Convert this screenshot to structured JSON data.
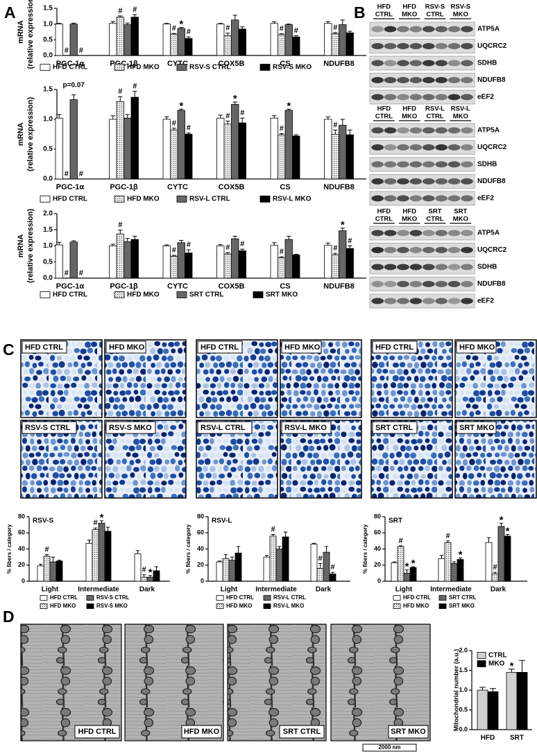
{
  "panel_labels": [
    "A",
    "B",
    "C",
    "D"
  ],
  "chart_data": [
    {
      "type": "bar",
      "y_label": "mRNA",
      "y_label_sub": "(relative expression)",
      "categories": [
        "PGC-1α",
        "PGC-1β",
        "CYTC",
        "COX5B",
        "CS",
        "NDUFB8"
      ],
      "ylim": [
        0,
        1.5
      ],
      "yticks": [
        {
          "value": 0,
          "label": "0.0"
        },
        0.5,
        {
          "value": 1,
          "label": "1.0"
        },
        1.5
      ],
      "legend": "bottom",
      "series": [
        {
          "name": "HFD CTRL",
          "color": "#ffffff",
          "values": [
            1.0,
            1.02,
            1.0,
            1.0,
            1.02,
            1.02
          ],
          "errors": [
            0.02,
            0.06,
            0.02,
            0.02,
            0.05,
            0.05
          ],
          "marks": [
            null,
            null,
            null,
            null,
            null,
            null
          ]
        },
        {
          "name": "HFD MKO",
          "color": "#d9d9d9",
          "pattern": "dots",
          "values": [
            0,
            1.22,
            0.68,
            0.63,
            0.66,
            0.69
          ],
          "errors": [
            0,
            0.04,
            0.02,
            0.08,
            0.03,
            0.04
          ],
          "marks": [
            "#",
            "#",
            "#",
            "#",
            "#",
            "#"
          ]
        },
        {
          "name": "RSV-S CTRL",
          "color": "#666666",
          "values": [
            1.0,
            0.98,
            0.86,
            1.13,
            0.98,
            0.98
          ],
          "errors": [
            0.03,
            0.05,
            0.03,
            0.15,
            0.02,
            0.15
          ],
          "marks": [
            null,
            null,
            "*",
            null,
            null,
            null
          ]
        },
        {
          "name": "RSV-S MKO",
          "color": "#000000",
          "values": [
            0,
            1.22,
            0.54,
            0.84,
            0.59,
            0.72
          ],
          "errors": [
            0,
            0.08,
            0.05,
            0.07,
            0.04,
            0.05
          ],
          "marks": [
            "#",
            "#",
            "#",
            null,
            "#",
            null
          ]
        }
      ]
    },
    {
      "type": "bar",
      "y_label": "mRNA",
      "y_label_sub": "(relative expression)",
      "annotation": "p=0.07",
      "categories": [
        "PGC-1α",
        "PGC-1β",
        "CYTC",
        "COX5B",
        "CS",
        "NDUFB8"
      ],
      "ylim": [
        0,
        1.5
      ],
      "yticks": [
        {
          "value": 0,
          "label": "0.0"
        },
        0.5,
        {
          "value": 1,
          "label": "1.0"
        },
        1.5
      ],
      "legend": "bottom",
      "series": [
        {
          "name": "HFD CTRL",
          "color": "#ffffff",
          "values": [
            1.02,
            1.0,
            1.0,
            1.02,
            1.02,
            1.0
          ],
          "errors": [
            0.06,
            0.06,
            0.04,
            0.05,
            0.04,
            0.04
          ],
          "marks": [
            null,
            null,
            null,
            null,
            null,
            null
          ]
        },
        {
          "name": "HFD MKO",
          "color": "#d9d9d9",
          "pattern": "dots",
          "values": [
            0,
            1.3,
            0.82,
            0.92,
            0.74,
            0.75
          ],
          "errors": [
            0,
            0.08,
            0.03,
            0.05,
            0.02,
            0.07
          ],
          "marks": [
            "#",
            "#",
            "#",
            "#",
            "#",
            "#"
          ]
        },
        {
          "name": "RSV-L CTRL",
          "color": "#666666",
          "values": [
            1.33,
            1.02,
            1.15,
            1.25,
            1.15,
            0.9
          ],
          "errors": [
            0.08,
            0.06,
            0.02,
            0.04,
            0.02,
            0.1
          ],
          "marks": [
            null,
            null,
            "*",
            "*",
            "*",
            null
          ]
        },
        {
          "name": "RSV-L MKO",
          "color": "#000000",
          "values": [
            0,
            1.37,
            0.75,
            0.94,
            0.72,
            0.74
          ],
          "errors": [
            0,
            0.1,
            0.02,
            0.08,
            0.02,
            0.08
          ],
          "marks": [
            "#",
            "#",
            "#",
            "#",
            null,
            null
          ]
        }
      ]
    },
    {
      "type": "bar",
      "y_label": "mRNA",
      "y_label_sub": "(relative expression)",
      "categories": [
        "PGC-1α",
        "PGC-1β",
        "CYTC",
        "COX5B",
        "CS",
        "NDUFB8"
      ],
      "ylim": [
        0,
        2
      ],
      "yticks": [
        {
          "value": 0,
          "label": "0.0"
        },
        0.5,
        {
          "value": 1,
          "label": "1.0"
        },
        1.5,
        {
          "value": 2,
          "label": "2.0"
        }
      ],
      "legend": "bottom",
      "series": [
        {
          "name": "HFD CTRL",
          "color": "#ffffff",
          "values": [
            1.03,
            1.0,
            1.0,
            1.0,
            1.02,
            1.02
          ],
          "errors": [
            0.08,
            0.05,
            0.03,
            0.04,
            0.08,
            0.07
          ],
          "marks": [
            null,
            null,
            null,
            null,
            null,
            null
          ]
        },
        {
          "name": "HFD MKO",
          "color": "#d9d9d9",
          "pattern": "dots",
          "values": [
            0,
            1.37,
            0.68,
            0.75,
            0.63,
            0.72
          ],
          "errors": [
            0,
            0.12,
            0.03,
            0.04,
            0.03,
            0.05
          ],
          "marks": [
            "#",
            "#",
            "#",
            "#",
            "#",
            "#"
          ]
        },
        {
          "name": "SRT CTRL",
          "color": "#666666",
          "values": [
            1.12,
            1.13,
            1.1,
            1.22,
            1.2,
            1.47
          ],
          "errors": [
            0.04,
            0.1,
            0.07,
            0.08,
            0.1,
            0.08
          ],
          "marks": [
            null,
            null,
            null,
            null,
            null,
            "*"
          ]
        },
        {
          "name": "SRT MKO",
          "color": "#000000",
          "values": [
            0,
            1.2,
            0.78,
            0.85,
            0.72,
            0.92
          ],
          "errors": [
            0,
            0.1,
            0.1,
            0.05,
            0.02,
            0.08
          ],
          "marks": [
            "#",
            null,
            "#",
            "#",
            null,
            "#"
          ]
        }
      ]
    },
    {
      "type": "bar",
      "title": "RSV-S",
      "y_label": "% fibers / category",
      "categories": [
        "Light",
        "Intermediate",
        "Dark"
      ],
      "ylim": [
        0,
        80
      ],
      "yticks": [
        0,
        20,
        40,
        60,
        80
      ],
      "legend": "bottom",
      "series": [
        {
          "name": "HFD CTRL",
          "color": "#ffffff",
          "values": [
            19,
            47,
            34
          ],
          "errors": [
            2,
            4,
            4
          ],
          "marks": [
            null,
            null,
            null
          ]
        },
        {
          "name": "HFD MKO",
          "color": "#d9d9d9",
          "pattern": "dots",
          "values": [
            31,
            64,
            5
          ],
          "errors": [
            2,
            2,
            3
          ],
          "marks": [
            "#",
            "#",
            "#"
          ]
        },
        {
          "name": "RSV-S CTRL",
          "color": "#666666",
          "values": [
            24,
            72,
            5
          ],
          "errors": [
            6,
            3,
            2
          ],
          "marks": [
            null,
            "*",
            "*"
          ]
        },
        {
          "name": "RSV-S MKO",
          "color": "#000000",
          "values": [
            25,
            62,
            13
          ],
          "errors": [
            1,
            5,
            5
          ],
          "marks": [
            null,
            null,
            null
          ]
        }
      ]
    },
    {
      "type": "bar",
      "title": "RSV-L",
      "y_label": "% fibers / category",
      "categories": [
        "Light",
        "Intermediate",
        "Dark"
      ],
      "ylim": [
        0,
        80
      ],
      "yticks": [
        0,
        20,
        40,
        60,
        80
      ],
      "legend": "bottom",
      "series": [
        {
          "name": "HFD CTRL",
          "color": "#ffffff",
          "values": [
            24,
            30,
            46
          ],
          "errors": [
            1,
            2,
            1
          ],
          "marks": [
            null,
            null,
            null
          ]
        },
        {
          "name": "HFD MKO",
          "color": "#d9d9d9",
          "pattern": "dots",
          "values": [
            28,
            56,
            16
          ],
          "errors": [
            5,
            2,
            6
          ],
          "marks": [
            null,
            "#",
            "#"
          ]
        },
        {
          "name": "RSV-L CTRL",
          "color": "#666666",
          "values": [
            26,
            40,
            36
          ],
          "errors": [
            4,
            3,
            7
          ],
          "marks": [
            null,
            null,
            null
          ]
        },
        {
          "name": "RSV-L MKO",
          "color": "#000000",
          "values": [
            35,
            55,
            9
          ],
          "errors": [
            8,
            6,
            2
          ],
          "marks": [
            null,
            null,
            "#"
          ]
        }
      ]
    },
    {
      "type": "bar",
      "title": "SRT",
      "y_label": "% fibers / category",
      "categories": [
        "Light",
        "Intermediate",
        "Dark"
      ],
      "ylim": [
        0,
        80
      ],
      "yticks": [
        0,
        20,
        40,
        60,
        80
      ],
      "legend": "bottom",
      "series": [
        {
          "name": "HFD CTRL",
          "color": "#ffffff",
          "values": [
            23,
            28,
            48
          ],
          "errors": [
            1,
            4,
            6
          ],
          "marks": [
            null,
            null,
            null
          ]
        },
        {
          "name": "HFD MKO",
          "color": "#d9d9d9",
          "pattern": "dots",
          "values": [
            43,
            48,
            9
          ],
          "errors": [
            1,
            2,
            2
          ],
          "marks": [
            "#",
            "#",
            "#"
          ]
        },
        {
          "name": "SRT CTRL",
          "color": "#666666",
          "values": [
            10,
            22,
            68
          ],
          "errors": [
            4,
            2,
            4
          ],
          "marks": [
            "*",
            null,
            "*"
          ]
        },
        {
          "name": "SRT MKO",
          "color": "#000000",
          "values": [
            17,
            27,
            56
          ],
          "errors": [
            1,
            2,
            2
          ],
          "marks": [
            "*",
            "*",
            "*"
          ]
        }
      ]
    },
    {
      "type": "bar",
      "y_label": "Mitochondrial number (a.u.)",
      "categories": [
        "HFD",
        "SRT"
      ],
      "ylim": [
        0,
        2
      ],
      "yticks": [
        {
          "value": 0,
          "label": "0.0"
        },
        0.5,
        {
          "value": 1,
          "label": "1.0"
        },
        1.5,
        {
          "value": 2,
          "label": "2.0"
        }
      ],
      "legend": "top-left",
      "series": [
        {
          "name": "CTRL",
          "color": "#d0d0d0",
          "values": [
            1.0,
            1.45
          ],
          "errors": [
            0.07,
            0.08
          ],
          "marks": [
            null,
            "*"
          ]
        },
        {
          "name": "MKO",
          "color": "#000000",
          "values": [
            0.96,
            1.45
          ],
          "errors": [
            0.08,
            0.3
          ],
          "marks": [
            null,
            null
          ]
        }
      ]
    }
  ],
  "blots": [
    {
      "groups": [
        [
          "HFD",
          "CTRL"
        ],
        [
          "HFD",
          "MKO"
        ],
        [
          "RSV-S",
          "CTRL"
        ],
        [
          "RSV-S",
          "MKO"
        ]
      ],
      "proteins": [
        "ATP5A",
        "UQCRC2",
        "SDHB",
        "NDUFB8",
        "eEF2"
      ]
    },
    {
      "groups": [
        [
          "HFD",
          "CTRL"
        ],
        [
          "HFD",
          "MKO"
        ],
        [
          "RSV-L",
          "CTRL"
        ],
        [
          "RSV-L",
          "MKO"
        ]
      ],
      "proteins": [
        "ATP5A",
        "UQCRC2",
        "SDHB",
        "NDUFB8",
        "eEF2"
      ]
    },
    {
      "groups": [
        [
          "HFD",
          "CTRL"
        ],
        [
          "HFD",
          "MKO"
        ],
        [
          "SRT",
          "CTRL"
        ],
        [
          "SRT",
          "MKO"
        ]
      ],
      "proteins": [
        "ATP5A",
        "UQCRC2",
        "SDHB",
        "NDUFB8",
        "eEF2"
      ]
    }
  ],
  "histology": [
    [
      "HFD CTRL",
      "HFD MKO",
      "RSV-S CTRL",
      "RSV-S MKO"
    ],
    [
      "HFD CTRL",
      "HFD MKO",
      "RSV-L CTRL",
      "RSV-L MKO"
    ],
    [
      "HFD CTRL",
      "HFD MKO",
      "SRT CTRL",
      "SRT MKO"
    ]
  ],
  "em_images": [
    "HFD CTRL",
    "HFD MKO",
    "SRT CTRL",
    "SRT MKO"
  ],
  "scale_bar": "2000 nm"
}
